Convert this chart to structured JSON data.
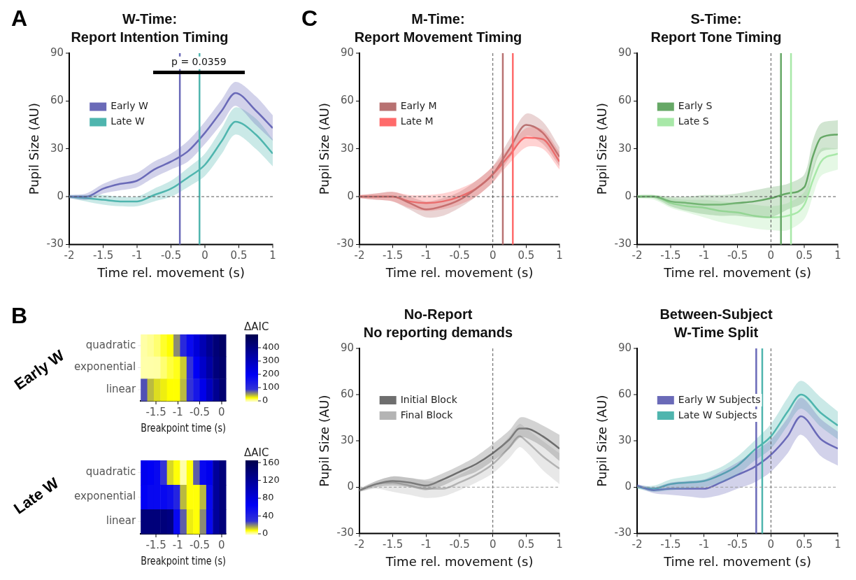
{
  "chart_data": [
    {
      "type": "line",
      "title": "W-Time:",
      "subtitle": "Report Intention Timing",
      "xlabel": "Time rel. movement (s)",
      "ylabel": "Pupil Size (AU)",
      "x": [
        -2,
        -1.75,
        -1.5,
        -1.25,
        -1,
        -0.75,
        -0.5,
        -0.25,
        0,
        0.25,
        0.45,
        0.75,
        1
      ],
      "series": [
        {
          "name": "Early W",
          "color": "#6a6ab8",
          "values": [
            0,
            0,
            5,
            8,
            10,
            17,
            22,
            28.5,
            40,
            54,
            65,
            54,
            43
          ],
          "lower": [
            -1,
            -2,
            2,
            4,
            6,
            12,
            17,
            22,
            33,
            46,
            57,
            45,
            35
          ],
          "upper": [
            1,
            2,
            8,
            12,
            15,
            22,
            27,
            35,
            47,
            61,
            72,
            63,
            51
          ]
        },
        {
          "name": "Late W",
          "color": "#4fb5ae",
          "values": [
            0,
            -1,
            -2,
            -3,
            -3,
            1,
            5,
            12,
            20,
            35,
            47,
            39,
            27
          ],
          "lower": [
            -1,
            -3,
            -5,
            -6,
            -6,
            -3,
            0,
            6,
            13,
            27,
            39,
            30,
            19
          ],
          "upper": [
            1,
            1,
            1,
            0,
            0,
            5,
            10,
            18,
            27,
            43,
            56,
            49,
            36
          ]
        }
      ],
      "xlim": [
        -2,
        1
      ],
      "xticks": [
        -2,
        -1.5,
        -1,
        -0.5,
        0,
        0.5,
        1
      ],
      "ylim": [
        -30,
        90
      ],
      "yticks": [
        -30,
        0,
        30,
        60,
        90
      ],
      "legend": "top left",
      "ref_lines": [
        {
          "axis": "x",
          "value": -0.37,
          "color": "#6a6ab8"
        },
        {
          "axis": "x",
          "value": -0.08,
          "color": "#4fb5ae"
        },
        {
          "axis": "y",
          "value": 0,
          "color": "#555555",
          "line_style": "dashed"
        }
      ],
      "annotations": [
        "A",
        {
          "text": "p = 0.0359",
          "x": -0.09,
          "y": 84
        }
      ]
    },
    {
      "type": "line",
      "title": "M-Time:",
      "subtitle": "Report Movement Timing",
      "xlabel": "Time rel. movement (s)",
      "ylabel": "Pupil Size (AU)",
      "x": [
        -2,
        -1.75,
        -1.5,
        -1.25,
        -1,
        -0.75,
        -0.5,
        -0.25,
        0,
        0.25,
        0.5,
        0.75,
        1
      ],
      "series": [
        {
          "name": "Early M",
          "color": "#b87272",
          "values": [
            0,
            0,
            0,
            -4,
            -8,
            -6,
            -2,
            5,
            14,
            30,
            45,
            40,
            25
          ],
          "lower": [
            -1,
            -2,
            -3,
            -8,
            -13,
            -12,
            -7,
            0,
            9,
            24,
            38,
            33,
            19
          ],
          "upper": [
            1,
            2,
            3,
            0,
            -3,
            -1,
            3,
            10,
            19,
            36,
            52,
            47,
            31
          ]
        },
        {
          "name": "Late M",
          "color": "#ff6b6b",
          "values": [
            0,
            0,
            0,
            -3,
            -4,
            -3,
            0,
            5,
            14,
            26,
            37,
            36,
            22
          ],
          "lower": [
            -1,
            -2,
            -3,
            -7,
            -9,
            -8,
            -5,
            0,
            9,
            21,
            31,
            30,
            17
          ],
          "upper": [
            1,
            2,
            3,
            1,
            1,
            2,
            5,
            10,
            19,
            31,
            43,
            42,
            28
          ]
        }
      ],
      "xlim": [
        -2,
        1
      ],
      "xticks": [
        -2,
        -1.5,
        -1,
        -0.5,
        0,
        0.5,
        1
      ],
      "ylim": [
        -30,
        90
      ],
      "yticks": [
        -30,
        0,
        30,
        60,
        90
      ],
      "legend": "top left",
      "ref_lines": [
        {
          "axis": "x",
          "value": 0,
          "color": "#555555",
          "line_style": "dashed"
        },
        {
          "axis": "x",
          "value": 0.15,
          "color": "#b87272"
        },
        {
          "axis": "x",
          "value": 0.3,
          "color": "#ff6b6b"
        },
        {
          "axis": "y",
          "value": 0,
          "color": "#555555",
          "line_style": "dashed"
        }
      ],
      "annotations": [
        "C"
      ]
    },
    {
      "type": "line",
      "title": "S-Time:",
      "subtitle": "Report Tone Timing",
      "xlabel": "Time rel. movement (s)",
      "ylabel": "Pupil Size (AU)",
      "x": [
        -2,
        -1.75,
        -1.5,
        -1.25,
        -1,
        -0.75,
        -0.5,
        -0.25,
        0,
        0.25,
        0.5,
        0.625,
        0.75,
        1
      ],
      "series": [
        {
          "name": "Early S",
          "color": "#66a866",
          "values": [
            0,
            0,
            -3,
            -4,
            -5,
            -5,
            -4,
            -3,
            -1,
            2,
            6,
            25,
            37,
            39
          ],
          "lower": [
            -1,
            -1,
            -6,
            -9,
            -11,
            -12,
            -12,
            -13,
            -13,
            -8,
            -3,
            15,
            28,
            30
          ],
          "upper": [
            1,
            1,
            0,
            0,
            1,
            1,
            2,
            4,
            6,
            8,
            14,
            35,
            46,
            48
          ]
        },
        {
          "name": "Late S",
          "color": "#a8e8a8",
          "values": [
            0,
            0,
            -4,
            -6,
            -7,
            -9,
            -10,
            -12,
            -13,
            -12,
            -5,
            10,
            22,
            27
          ],
          "lower": [
            -1,
            -2,
            -7,
            -10,
            -13,
            -16,
            -18,
            -20,
            -21,
            -21,
            -14,
            0,
            13,
            17
          ],
          "upper": [
            1,
            1,
            -1,
            -2,
            -2,
            -3,
            -4,
            -5,
            -6,
            -4,
            3,
            18,
            30,
            30
          ]
        }
      ],
      "xlim": [
        -2,
        1
      ],
      "xticks": [
        -2,
        -1.5,
        -1,
        -0.5,
        0,
        0.5,
        1
      ],
      "ylim": [
        -30,
        90
      ],
      "yticks": [
        -30,
        0,
        30,
        60,
        90
      ],
      "legend": "top left",
      "ref_lines": [
        {
          "axis": "x",
          "value": 0,
          "color": "#555555",
          "line_style": "dashed"
        },
        {
          "axis": "x",
          "value": 0.15,
          "color": "#66a866"
        },
        {
          "axis": "x",
          "value": 0.3,
          "color": "#a8e8a8"
        },
        {
          "axis": "y",
          "value": 0,
          "color": "#555555",
          "line_style": "dashed"
        }
      ]
    },
    {
      "type": "heatmap",
      "ylabel": "Early W",
      "xlabel": "Breakpoint time (s)",
      "clabel": "ΔAIC",
      "x": [
        -1.775,
        -1.625,
        -1.475,
        -1.325,
        -1.175,
        -1.025,
        -0.875,
        -0.725,
        -0.575,
        -0.425,
        -0.275,
        -0.125,
        0.025
      ],
      "y_categories": [
        "quadratic",
        "exponential",
        "linear"
      ],
      "cells": [
        [
          5,
          8,
          12,
          20,
          25,
          60,
          110,
          180,
          250,
          320,
          380,
          430,
          460
        ],
        [
          0,
          2,
          6,
          12,
          18,
          22,
          40,
          90,
          200,
          280,
          350,
          420,
          450
        ],
        [
          80,
          45,
          35,
          30,
          25,
          25,
          45,
          90,
          150,
          220,
          300,
          380,
          440
        ]
      ],
      "xlim": [
        -1.85,
        0.1
      ],
      "xticks": [
        -1.5,
        -1,
        -0.5,
        0
      ],
      "clim": [
        0,
        500
      ],
      "cticks": [
        0,
        100,
        200,
        300,
        400
      ],
      "annotations": [
        "B"
      ]
    },
    {
      "type": "heatmap",
      "ylabel": "Late W",
      "xlabel": "Breakpoint time (s)",
      "clabel": "ΔAIC",
      "x": [
        -1.775,
        -1.625,
        -1.475,
        -1.325,
        -1.175,
        -1.025,
        -0.875,
        -0.725,
        -0.575,
        -0.425,
        -0.275,
        -0.125,
        0.025
      ],
      "y_categories": [
        "quadratic",
        "exponential",
        "linear"
      ],
      "cells": [
        [
          70,
          65,
          60,
          30,
          12,
          8,
          0,
          8,
          25,
          60,
          70,
          120,
          140
        ],
        [
          65,
          60,
          60,
          60,
          55,
          40,
          15,
          8,
          8,
          15,
          60,
          120,
          140
        ],
        [
          140,
          140,
          140,
          140,
          135,
          60,
          25,
          10,
          8,
          20,
          60,
          120,
          140
        ]
      ],
      "xlim": [
        -1.85,
        0.1
      ],
      "xticks": [
        -1.5,
        -1,
        -0.5,
        0
      ],
      "clim": [
        0,
        165
      ],
      "cticks": [
        0,
        40,
        80,
        120,
        160
      ]
    },
    {
      "type": "line",
      "title": "No-Report",
      "subtitle": "No reporting demands",
      "xlabel": "Time rel. movement (s)",
      "ylabel": "Pupil Size (AU)",
      "x": [
        -2,
        -1.75,
        -1.5,
        -1.25,
        -1,
        -0.75,
        -0.5,
        -0.25,
        0,
        0.25,
        0.4,
        0.5,
        0.75,
        1
      ],
      "series": [
        {
          "name": "Initial Block",
          "color": "#6e6e6e",
          "values": [
            -2,
            2,
            4,
            3,
            1,
            5,
            10,
            15,
            22,
            31,
            38,
            38,
            33,
            25
          ],
          "lower": [
            -3,
            0,
            1,
            0,
            -2,
            1,
            6,
            10,
            17,
            25,
            32,
            32,
            26,
            17
          ],
          "upper": [
            -1,
            4,
            7,
            6,
            5,
            9,
            14,
            20,
            28,
            37,
            45,
            45,
            40,
            34
          ]
        },
        {
          "name": "Final Block",
          "color": "#b4b4b4",
          "values": [
            -2,
            2,
            3,
            1,
            -1,
            -1,
            3,
            8,
            15,
            26,
            33,
            30,
            20,
            12
          ],
          "lower": [
            -3,
            -1,
            -3,
            -5,
            -7,
            -6,
            -2,
            3,
            9,
            19,
            26,
            23,
            11,
            2
          ],
          "upper": [
            -1,
            4,
            7,
            6,
            4,
            4,
            8,
            14,
            21,
            33,
            41,
            38,
            30,
            22
          ]
        }
      ],
      "xlim": [
        -2,
        1
      ],
      "xticks": [
        -2,
        -1.5,
        -1,
        -0.5,
        0,
        0.5,
        1
      ],
      "ylim": [
        -30,
        90
      ],
      "yticks": [
        -30,
        0,
        30,
        60,
        90
      ],
      "legend": "top left",
      "ref_lines": [
        {
          "axis": "x",
          "value": 0,
          "color": "#555555",
          "line_style": "dashed"
        },
        {
          "axis": "y",
          "value": 0,
          "color": "#999999",
          "line_style": "dashed"
        }
      ]
    },
    {
      "type": "line",
      "title": "Between-Subject",
      "subtitle": "W-Time Split",
      "xlabel": "Time rel. movement (s)",
      "ylabel": "Pupil Size (AU)",
      "x": [
        -2,
        -1.75,
        -1.5,
        -1.25,
        -1,
        -0.75,
        -0.5,
        -0.25,
        0,
        0.25,
        0.45,
        0.75,
        1
      ],
      "series": [
        {
          "name": "Early W Subjects",
          "color": "#6a6ab8",
          "values": [
            1,
            -2,
            -1,
            -1,
            -1,
            3,
            8,
            13,
            21,
            33,
            46,
            31,
            25
          ],
          "lower": [
            0,
            -4,
            -5,
            -6,
            -7,
            -5,
            -1,
            3,
            10,
            22,
            34,
            20,
            14
          ],
          "upper": [
            2,
            0,
            3,
            4,
            5,
            10,
            16,
            23,
            31,
            45,
            58,
            44,
            36
          ]
        },
        {
          "name": "Late W Subjects",
          "color": "#4fb5ae",
          "values": [
            0,
            -1,
            2,
            3,
            4,
            8,
            14,
            24,
            33,
            49,
            60,
            48,
            40
          ],
          "lower": [
            -1,
            -3,
            -2,
            -1,
            0,
            3,
            8,
            17,
            25,
            40,
            51,
            39,
            31
          ],
          "upper": [
            1,
            1,
            5,
            7,
            9,
            13,
            20,
            30,
            41,
            58,
            69,
            58,
            49
          ]
        }
      ],
      "xlim": [
        -2,
        1
      ],
      "xticks": [
        -2,
        -1.5,
        -1,
        -0.5,
        0,
        0.5,
        1
      ],
      "ylim": [
        -30,
        90
      ],
      "yticks": [
        -30,
        0,
        30,
        60,
        90
      ],
      "legend": "top left",
      "ref_lines": [
        {
          "axis": "x",
          "value": -0.22,
          "color": "#6a6ab8"
        },
        {
          "axis": "x",
          "value": -0.13,
          "color": "#4fb5ae"
        },
        {
          "axis": "x",
          "value": 0,
          "color": "#555555",
          "line_style": "dashed"
        },
        {
          "axis": "y",
          "value": 0,
          "color": "#999999",
          "line_style": "dashed"
        }
      ]
    }
  ]
}
